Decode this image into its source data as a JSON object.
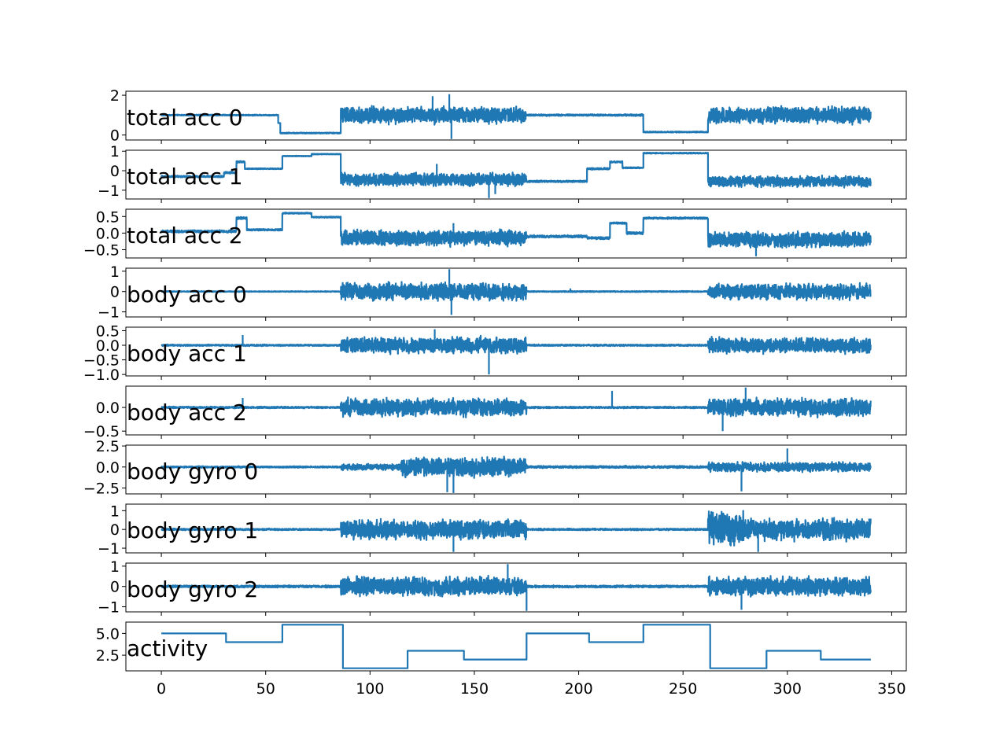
{
  "chart_data": {
    "type": "line",
    "title": "",
    "xlabel": "",
    "xlim": [
      -17,
      357
    ],
    "xticks": [
      0,
      50,
      100,
      150,
      200,
      250,
      300,
      350
    ],
    "xtick_labels": [
      "0",
      "50",
      "100",
      "150",
      "200",
      "250",
      "300",
      "350"
    ],
    "line_color": "#1f77b4",
    "panels": [
      {
        "label": "total acc 0",
        "ylim": [
          -0.25,
          2.2
        ],
        "yticks": [
          0,
          2
        ],
        "ytick_labels": [
          "0",
          "2"
        ],
        "mode": "noise",
        "segments": [
          [
            0,
            56,
            1.0,
            0.03
          ],
          [
            56,
            57,
            0.6,
            0.0
          ],
          [
            57,
            86,
            0.1,
            0.03
          ],
          [
            86,
            175,
            1.0,
            0.45
          ],
          [
            175,
            204,
            1.0,
            0.05
          ],
          [
            204,
            231,
            1.0,
            0.05
          ],
          [
            231,
            262,
            0.15,
            0.03
          ],
          [
            262,
            340,
            1.0,
            0.45
          ]
        ],
        "spikes": [
          [
            139,
            -0.2
          ],
          [
            138,
            2.05
          ],
          [
            130,
            1.95
          ]
        ]
      },
      {
        "label": "total acc 1",
        "ylim": [
          -1.45,
          1.05
        ],
        "yticks": [
          -1,
          0,
          1
        ],
        "ytick_labels": [
          "−1",
          "0",
          "1"
        ],
        "mode": "noise",
        "segments": [
          [
            0,
            30,
            -0.3,
            0.05
          ],
          [
            30,
            36,
            -0.1,
            0.05
          ],
          [
            36,
            40,
            0.45,
            0.05
          ],
          [
            40,
            48,
            0.1,
            0.03
          ],
          [
            48,
            58,
            0.1,
            0.03
          ],
          [
            58,
            72,
            0.75,
            0.02
          ],
          [
            72,
            86,
            0.85,
            0.02
          ],
          [
            86,
            175,
            -0.45,
            0.35
          ],
          [
            175,
            204,
            -0.55,
            0.05
          ],
          [
            204,
            215,
            0.1,
            0.05
          ],
          [
            215,
            221,
            0.45,
            0.04
          ],
          [
            221,
            231,
            0.15,
            0.04
          ],
          [
            231,
            262,
            0.9,
            0.03
          ],
          [
            262,
            340,
            -0.55,
            0.3
          ]
        ],
        "spikes": [
          [
            157,
            -1.4
          ],
          [
            160,
            -1.2
          ],
          [
            132,
            0.35
          ]
        ]
      },
      {
        "label": "total acc 2",
        "ylim": [
          -0.75,
          0.72
        ],
        "yticks": [
          -0.5,
          0.0,
          0.5
        ],
        "ytick_labels": [
          "−0.5",
          "0.0",
          "0.5"
        ],
        "mode": "noise",
        "segments": [
          [
            0,
            36,
            0.05,
            0.04
          ],
          [
            36,
            41,
            0.45,
            0.04
          ],
          [
            41,
            58,
            0.1,
            0.03
          ],
          [
            58,
            72,
            0.6,
            0.02
          ],
          [
            72,
            86,
            0.48,
            0.02
          ],
          [
            86,
            175,
            -0.15,
            0.25
          ],
          [
            175,
            204,
            -0.1,
            0.04
          ],
          [
            204,
            215,
            -0.15,
            0.04
          ],
          [
            215,
            223,
            0.3,
            0.03
          ],
          [
            223,
            231,
            0.0,
            0.04
          ],
          [
            231,
            262,
            0.45,
            0.03
          ],
          [
            262,
            340,
            -0.2,
            0.25
          ]
        ],
        "spikes": [
          [
            285,
            -0.7
          ],
          [
            140,
            0.3
          ]
        ]
      },
      {
        "label": "body acc 0",
        "ylim": [
          -1.25,
          1.15
        ],
        "yticks": [
          -1,
          0,
          1
        ],
        "ytick_labels": [
          "−1",
          "0",
          "1"
        ],
        "mode": "noise",
        "segments": [
          [
            0,
            86,
            0.0,
            0.02
          ],
          [
            86,
            175,
            0.0,
            0.45
          ],
          [
            175,
            262,
            0.0,
            0.03
          ],
          [
            262,
            340,
            0.0,
            0.42
          ]
        ],
        "spikes": [
          [
            139,
            -1.15
          ],
          [
            138,
            1.1
          ],
          [
            196,
            0.15
          ]
        ]
      },
      {
        "label": "body acc 1",
        "ylim": [
          -1.05,
          0.62
        ],
        "yticks": [
          -1.0,
          -0.5,
          0.0,
          0.5
        ],
        "ytick_labels": [
          "−1.0",
          "−0.5",
          "0.0",
          "0.5"
        ],
        "mode": "noise",
        "segments": [
          [
            0,
            86,
            0.0,
            0.03
          ],
          [
            86,
            175,
            0.0,
            0.3
          ],
          [
            175,
            262,
            0.0,
            0.03
          ],
          [
            262,
            340,
            0.0,
            0.28
          ]
        ],
        "spikes": [
          [
            39,
            0.35
          ],
          [
            157,
            -1.0
          ],
          [
            131,
            0.55
          ]
        ]
      },
      {
        "label": "body acc 2",
        "ylim": [
          -0.58,
          0.45
        ],
        "yticks": [
          -0.5,
          0.0
        ],
        "ytick_labels": [
          "−0.5",
          "0.0"
        ],
        "mode": "noise",
        "segments": [
          [
            0,
            86,
            0.0,
            0.02
          ],
          [
            86,
            175,
            0.0,
            0.2
          ],
          [
            175,
            262,
            0.0,
            0.02
          ],
          [
            262,
            340,
            0.0,
            0.2
          ]
        ],
        "spikes": [
          [
            216,
            0.35
          ],
          [
            39,
            0.2
          ],
          [
            280,
            0.42
          ],
          [
            269,
            -0.5
          ]
        ]
      },
      {
        "label": "body gyro 0",
        "ylim": [
          -3.2,
          2.6
        ],
        "yticks": [
          -2.5,
          0.0,
          2.5
        ],
        "ytick_labels": [
          "−2.5",
          "0.0",
          "2.5"
        ],
        "mode": "noise",
        "segments": [
          [
            0,
            86,
            0.0,
            0.1
          ],
          [
            86,
            115,
            0.0,
            0.4
          ],
          [
            115,
            175,
            0.0,
            1.2
          ],
          [
            175,
            262,
            0.0,
            0.15
          ],
          [
            262,
            340,
            0.0,
            0.6
          ]
        ],
        "spikes": [
          [
            140,
            -3.1
          ],
          [
            137,
            -3.0
          ],
          [
            300,
            2.2
          ],
          [
            278,
            -2.9
          ]
        ]
      },
      {
        "label": "body gyro 1",
        "ylim": [
          -1.25,
          1.35
        ],
        "yticks": [
          -1,
          0,
          1
        ],
        "ytick_labels": [
          "−1",
          "0",
          "1"
        ],
        "mode": "noise",
        "segments": [
          [
            0,
            86,
            0.0,
            0.05
          ],
          [
            86,
            175,
            0.0,
            0.55
          ],
          [
            175,
            262,
            0.0,
            0.05
          ],
          [
            262,
            280,
            0.0,
            1.0
          ],
          [
            280,
            340,
            0.0,
            0.6
          ]
        ],
        "spikes": [
          [
            140,
            -1.2
          ],
          [
            286,
            -1.2
          ]
        ]
      },
      {
        "label": "body gyro 2",
        "ylim": [
          -1.25,
          1.15
        ],
        "yticks": [
          -1,
          0,
          1
        ],
        "ytick_labels": [
          "−1",
          "0",
          "1"
        ],
        "mode": "noise",
        "segments": [
          [
            0,
            86,
            0.0,
            0.06
          ],
          [
            86,
            175,
            0.0,
            0.5
          ],
          [
            175,
            262,
            0.0,
            0.06
          ],
          [
            262,
            340,
            0.0,
            0.5
          ]
        ],
        "spikes": [
          [
            175,
            -1.2
          ],
          [
            278,
            -1.15
          ],
          [
            166,
            1.1
          ]
        ]
      },
      {
        "label": "activity",
        "ylim": [
          0.7,
          6.3
        ],
        "yticks": [
          2.5,
          5.0
        ],
        "ytick_labels": [
          "2.5",
          "5.0"
        ],
        "mode": "step",
        "steps": [
          [
            0,
            31,
            5
          ],
          [
            31,
            58,
            4
          ],
          [
            58,
            87,
            6
          ],
          [
            87,
            118,
            1
          ],
          [
            118,
            145,
            3
          ],
          [
            145,
            175,
            2
          ],
          [
            175,
            205,
            5
          ],
          [
            205,
            231,
            4
          ],
          [
            231,
            263,
            6
          ],
          [
            263,
            290,
            1
          ],
          [
            290,
            316,
            3
          ],
          [
            316,
            340,
            2
          ]
        ]
      }
    ]
  }
}
